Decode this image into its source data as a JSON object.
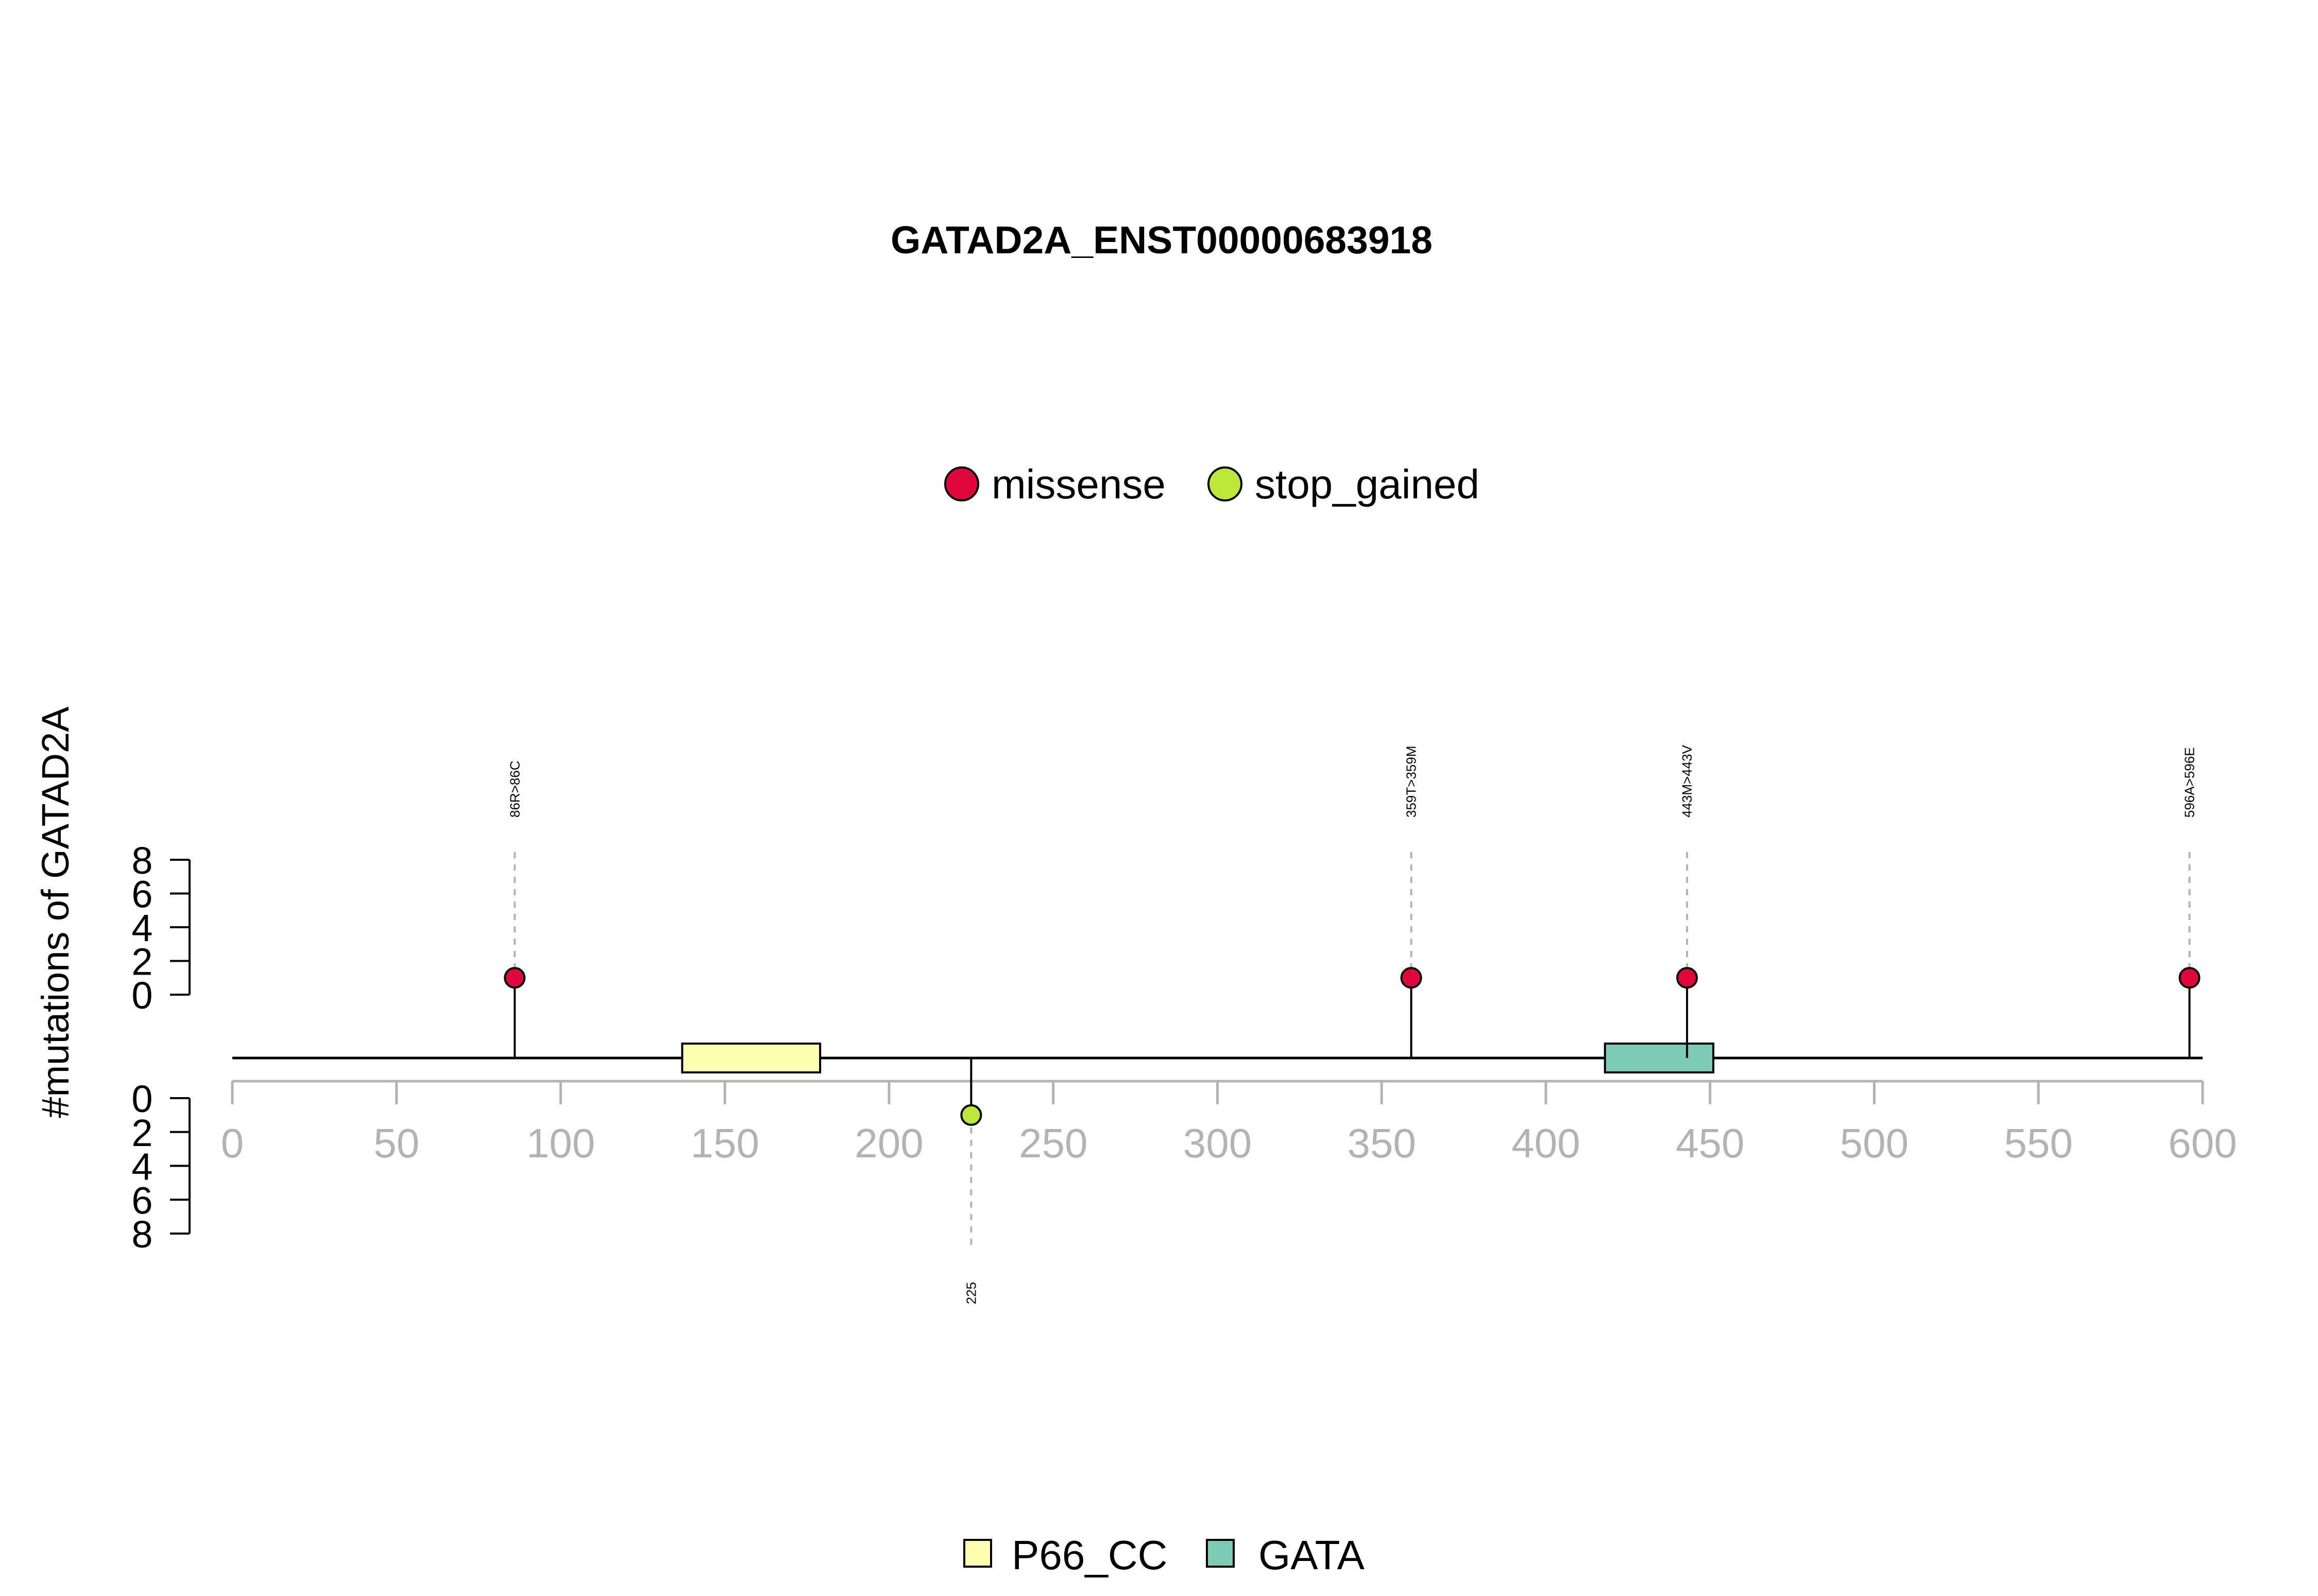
{
  "chart_data": {
    "type": "lollipop",
    "title": "GATAD2A_ENST00000683918",
    "ylabel": "#mutations of GATAD2A",
    "xlim": [
      0,
      600
    ],
    "xticks": [
      0,
      50,
      100,
      150,
      200,
      250,
      300,
      350,
      400,
      450,
      500,
      550,
      600
    ],
    "yticks_upper": [
      0,
      2,
      4,
      6,
      8
    ],
    "yticks_lower": [
      0,
      2,
      4,
      6,
      8
    ],
    "ylim": [
      0,
      8
    ],
    "legend_top": [
      {
        "label": "missense",
        "color": "#e0073d"
      },
      {
        "label": "stop_gained",
        "color": "#bde839"
      }
    ],
    "legend_bottom": [
      {
        "label": "P66_CC",
        "color": "#ffffb2"
      },
      {
        "label": "GATA",
        "color": "#7ecbb5"
      }
    ],
    "domains": [
      {
        "name": "P66_CC",
        "start": 137,
        "end": 179,
        "color": "#ffffb2"
      },
      {
        "name": "GATA",
        "start": 418,
        "end": 451,
        "color": "#7ecbb5"
      }
    ],
    "mutations": [
      {
        "position": 86,
        "label": "86R>86C",
        "type": "missense",
        "count": 1,
        "side": "top",
        "color": "#e0073d"
      },
      {
        "position": 359,
        "label": "359T>359M",
        "type": "missense",
        "count": 1,
        "side": "top",
        "color": "#e0073d"
      },
      {
        "position": 443,
        "label": "443M>443V",
        "type": "missense",
        "count": 1,
        "side": "top",
        "color": "#e0073d"
      },
      {
        "position": 596,
        "label": "596A>596E",
        "type": "missense",
        "count": 1,
        "side": "top",
        "color": "#e0073d"
      },
      {
        "position": 225,
        "label": "225",
        "type": "stop_gained",
        "count": 1,
        "side": "bottom",
        "color": "#bde839"
      }
    ]
  }
}
